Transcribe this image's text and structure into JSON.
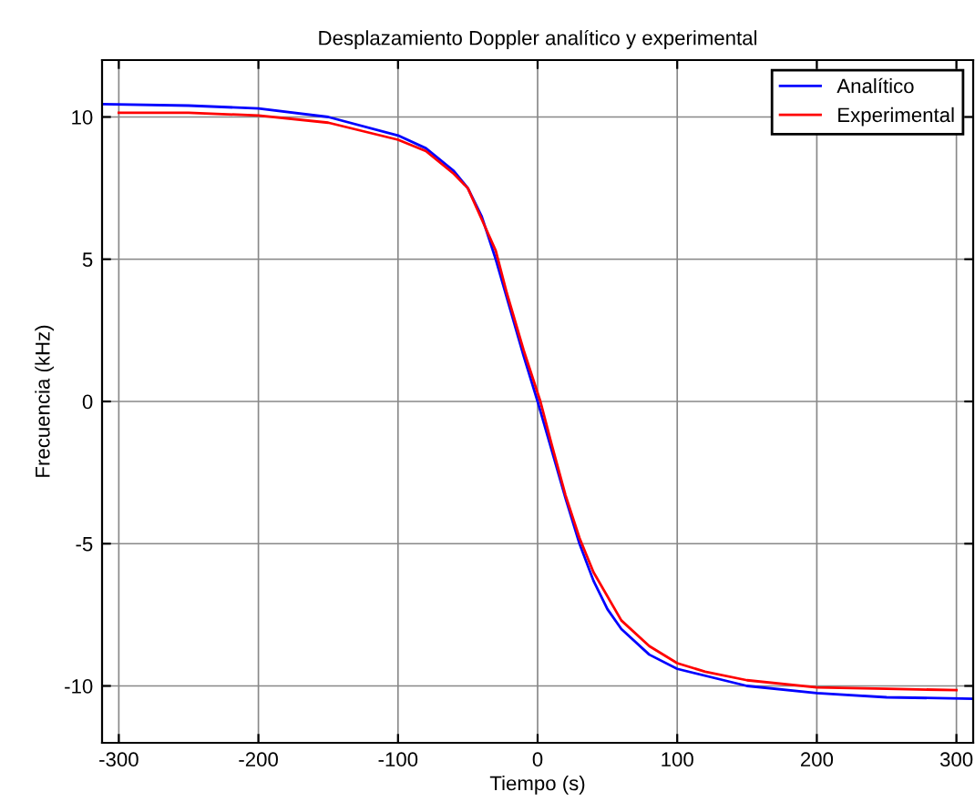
{
  "chart_data": {
    "type": "line",
    "title": "Desplazamiento Doppler analítico y experimental",
    "xlabel": "Tiempo (s)",
    "ylabel": "Frecuencia (kHz)",
    "xlim": [
      -312,
      312
    ],
    "ylim": [
      -12,
      12
    ],
    "xticks": [
      -300,
      -200,
      -100,
      0,
      100,
      200,
      300
    ],
    "yticks": [
      -10,
      -5,
      0,
      5,
      10
    ],
    "grid": true,
    "legend": "top right",
    "series": [
      {
        "name": "Analítico",
        "color": "#0000ff",
        "x": [
          -312,
          -250,
          -200,
          -150,
          -100,
          -80,
          -60,
          -50,
          -40,
          -30,
          -20,
          -10,
          0,
          10,
          20,
          30,
          40,
          50,
          60,
          80,
          100,
          150,
          200,
          250,
          312
        ],
        "values": [
          10.45,
          10.4,
          10.3,
          10.0,
          9.35,
          8.9,
          8.1,
          7.5,
          6.5,
          5.0,
          3.3,
          1.6,
          0,
          -1.7,
          -3.4,
          -5.0,
          -6.3,
          -7.3,
          -8.0,
          -8.9,
          -9.4,
          -10.0,
          -10.25,
          -10.4,
          -10.45
        ]
      },
      {
        "name": "Experimental",
        "color": "#ff0000",
        "x": [
          -300,
          -250,
          -200,
          -150,
          -100,
          -80,
          -60,
          -50,
          -40,
          -30,
          -22,
          -10,
          2,
          10,
          20,
          30,
          40,
          60,
          80,
          100,
          120,
          150,
          200,
          250,
          300
        ],
        "values": [
          10.15,
          10.15,
          10.05,
          9.8,
          9.2,
          8.8,
          8.0,
          7.5,
          6.4,
          5.3,
          3.8,
          1.8,
          0,
          -1.5,
          -3.3,
          -4.8,
          -6.0,
          -7.7,
          -8.6,
          -9.2,
          -9.5,
          -9.8,
          -10.05,
          -10.1,
          -10.15
        ]
      }
    ]
  }
}
